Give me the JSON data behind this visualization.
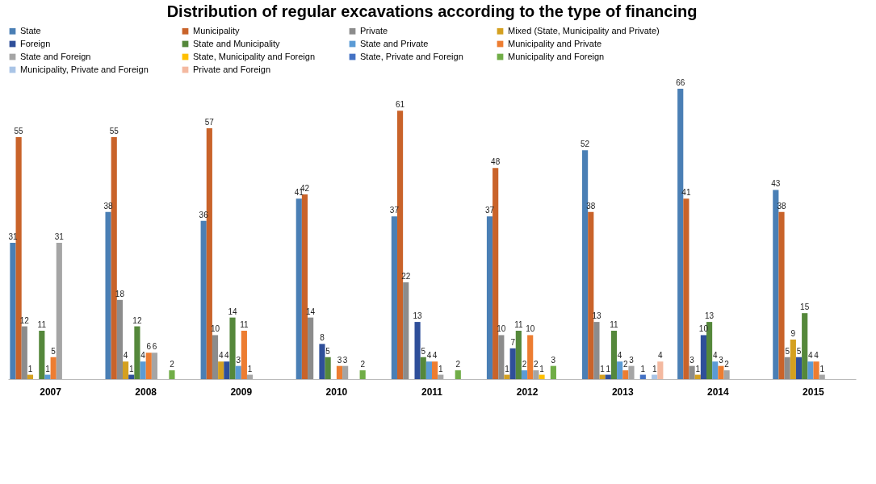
{
  "chart_data": {
    "type": "bar",
    "title": "Distribution of regular excavations according to the type of financing",
    "categories": [
      "2007",
      "2008",
      "2009",
      "2010",
      "2011",
      "2012",
      "2013",
      "2014",
      "2015"
    ],
    "series": [
      {
        "name": "State",
        "color": "#4a7fb5",
        "values": [
          31,
          38,
          36,
          41,
          37,
          37,
          52,
          66,
          43
        ]
      },
      {
        "name": "Municipality",
        "color": "#c9632a",
        "values": [
          55,
          55,
          57,
          42,
          61,
          48,
          38,
          41,
          38
        ]
      },
      {
        "name": "Private",
        "color": "#8c8c8c",
        "values": [
          12,
          18,
          10,
          14,
          22,
          10,
          13,
          3,
          5
        ]
      },
      {
        "name": "Mixed (State, Municipality  and Private)",
        "color": "#d4a020",
        "values": [
          1,
          4,
          4,
          null,
          null,
          1,
          1,
          1,
          9
        ]
      },
      {
        "name": "Foreign",
        "color": "#2f4f9a",
        "values": [
          null,
          1,
          4,
          8,
          13,
          7,
          1,
          10,
          5
        ]
      },
      {
        "name": "State and Municipality",
        "color": "#55883b",
        "values": [
          11,
          12,
          14,
          5,
          5,
          11,
          11,
          13,
          15
        ]
      },
      {
        "name": "State and Private",
        "color": "#5b9bd5",
        "values": [
          1,
          4,
          3,
          null,
          4,
          2,
          4,
          4,
          4
        ]
      },
      {
        "name": "Municipality and Private",
        "color": "#ed7d31",
        "values": [
          5,
          6,
          11,
          3,
          4,
          10,
          2,
          3,
          4
        ]
      },
      {
        "name": "State and Foreign",
        "color": "#a5a5a5",
        "values": [
          31,
          6,
          1,
          3,
          1,
          2,
          3,
          2,
          1
        ]
      },
      {
        "name": "State, Municipality and Foreign",
        "color": "#ffc000",
        "values": [
          null,
          null,
          null,
          null,
          null,
          1,
          null,
          null,
          null
        ]
      },
      {
        "name": "State, Private and Foreign",
        "color": "#4472c4",
        "values": [
          null,
          null,
          null,
          null,
          null,
          null,
          1,
          null,
          null
        ]
      },
      {
        "name": "Municipality and Foreign",
        "color": "#70ad47",
        "values": [
          null,
          2,
          null,
          2,
          2,
          3,
          null,
          null,
          null
        ]
      },
      {
        "name": "Municipality, Private and Foreign",
        "color": "#a9c4e6",
        "values": [
          null,
          null,
          null,
          null,
          null,
          null,
          1,
          null,
          null
        ]
      },
      {
        "name": "Private and Foreign",
        "color": "#f4b9a0",
        "values": [
          null,
          null,
          null,
          null,
          null,
          null,
          4,
          null,
          null
        ]
      }
    ],
    "data_labels": true,
    "legend": "top",
    "grid": false
  }
}
